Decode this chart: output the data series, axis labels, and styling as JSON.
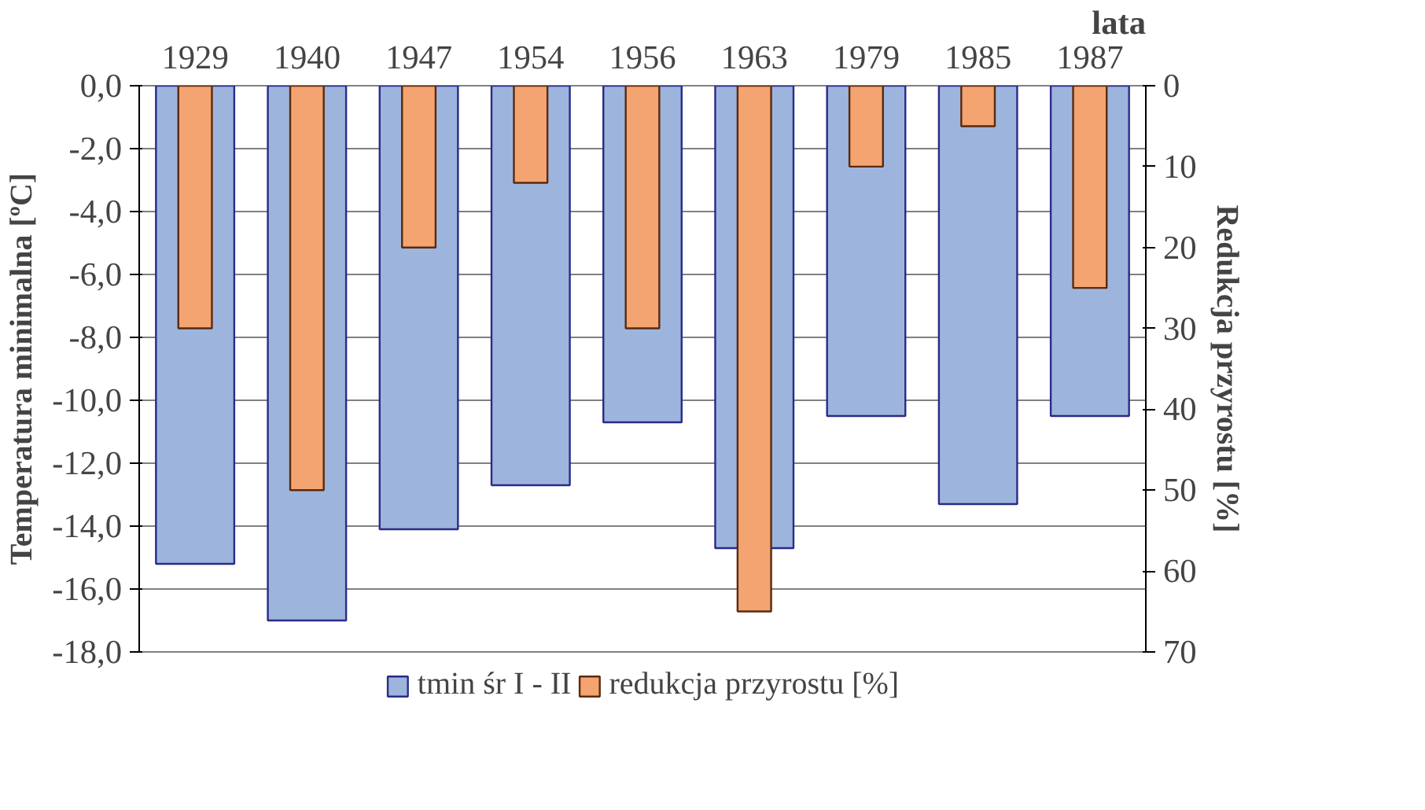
{
  "chart_data": {
    "type": "bar",
    "xlabel": "lata",
    "ylabel": "Temperatura minimalna [ºC]",
    "y2label": "Redukcja przyrostu [%]",
    "categories": [
      "1929",
      "1940",
      "1947",
      "1954",
      "1956",
      "1963",
      "1979",
      "1985",
      "1987"
    ],
    "series": [
      {
        "name": "tmin śr I - II",
        "color": "#9db5dc",
        "values": [
          -15.2,
          -17.0,
          -14.1,
          -12.7,
          -10.7,
          -14.7,
          -10.5,
          -13.3,
          -10.5
        ]
      },
      {
        "name": "redukcja przyrostu [%]",
        "color": "#f4a470",
        "axis": "y2",
        "values": [
          30,
          50,
          20,
          12,
          30,
          65,
          10,
          5,
          25
        ]
      }
    ],
    "ylim": [
      -18,
      0
    ],
    "yticks": [
      {
        "value": -18,
        "label": "-18,0"
      },
      {
        "value": -16,
        "label": "-16,0"
      },
      {
        "value": -14,
        "label": "-14,0"
      },
      {
        "value": -12,
        "label": "-12,0"
      },
      {
        "value": -10,
        "label": "-10,0"
      },
      {
        "value": -8,
        "label": "-8,0"
      },
      {
        "value": -6,
        "label": "-6,0"
      },
      {
        "value": -4,
        "label": "-4,0"
      },
      {
        "value": -2,
        "label": "-2,0"
      },
      {
        "value": 0,
        "label": "0,0"
      }
    ],
    "y2lim": [
      70,
      0
    ],
    "y2ticks": [
      0,
      10,
      20,
      30,
      40,
      50,
      60,
      70
    ],
    "grid": "y",
    "legend": "bottom"
  }
}
